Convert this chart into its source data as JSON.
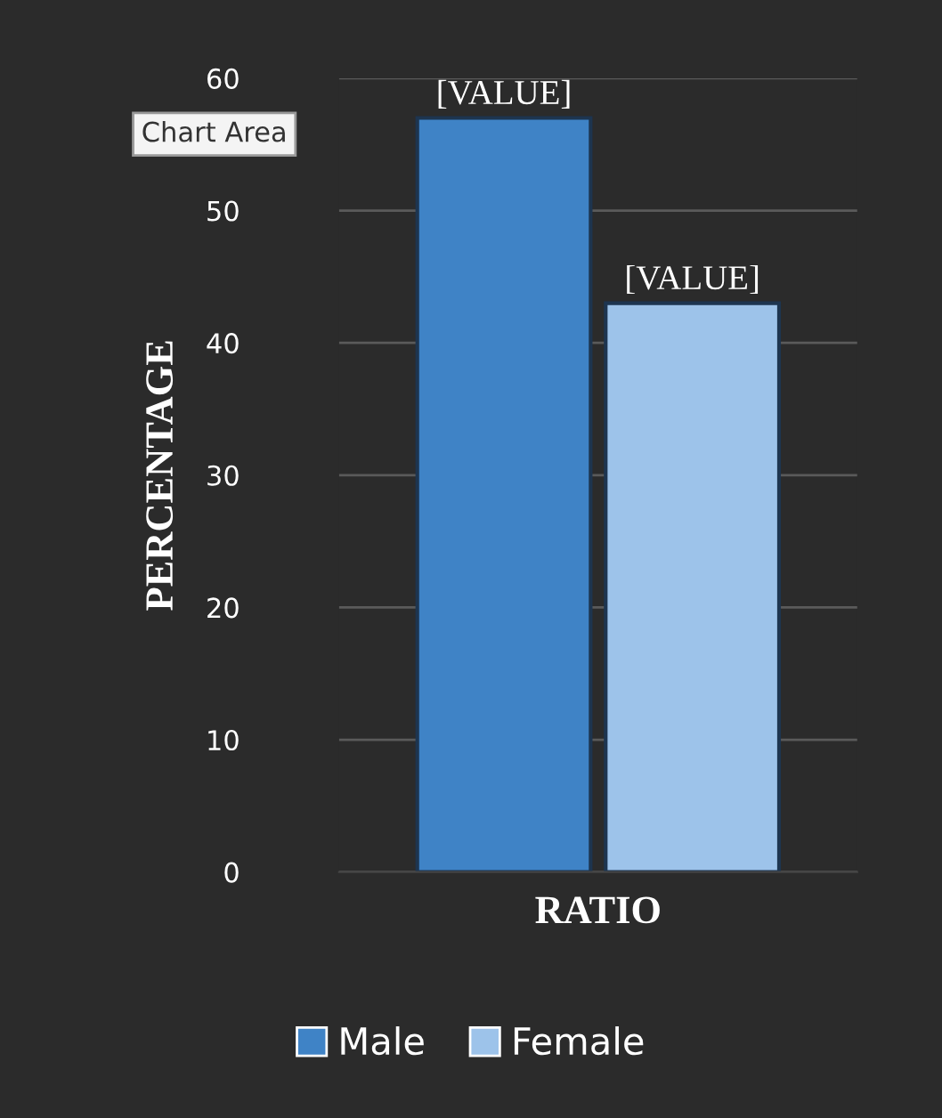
{
  "chart_data": {
    "type": "bar",
    "ylabel": "PERCENTAGE",
    "xlabel": "RATIO",
    "categories": [
      null
    ],
    "series": [
      {
        "name": "Male",
        "color": "#3f83c6",
        "values": [
          57
        ],
        "value_labels": [
          "[VALUE]"
        ]
      },
      {
        "name": "Female",
        "color": "#9dc3ea",
        "values": [
          43
        ],
        "value_labels": [
          "[VALUE]"
        ]
      }
    ],
    "ylim": [
      0,
      60
    ],
    "yticks": [
      0,
      10,
      20,
      30,
      40,
      50,
      60
    ],
    "grid": "y",
    "legend": "bottom",
    "annotations": [
      "Chart Area"
    ]
  }
}
